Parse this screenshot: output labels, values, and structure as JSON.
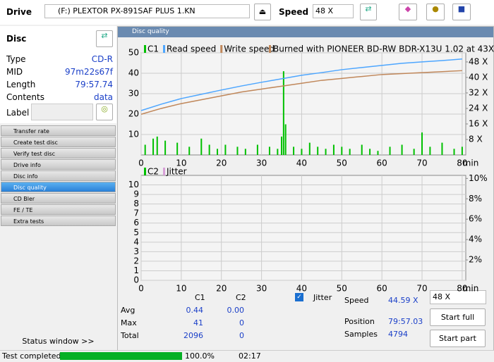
{
  "toolbar": {
    "drive_label": "Drive",
    "drive": "(F:)  PLEXTOR PX-891SAF PLUS 1.KN",
    "speed_label": "Speed",
    "speed": "48 X"
  },
  "disc": {
    "title": "Disc",
    "rows": [
      [
        "Type",
        "CD-R"
      ],
      [
        "MID",
        "97m22s67f"
      ],
      [
        "Length",
        "79:57.74"
      ],
      [
        "Contents",
        "data"
      ]
    ],
    "label": "Label"
  },
  "menu": [
    "Transfer rate",
    "Create test disc",
    "Verify test disc",
    "Drive info",
    "Disc info",
    "Disc quality",
    "CD Bler",
    "FE / TE",
    "Extra tests"
  ],
  "menu_selected": 5,
  "status_window": "Status window >>",
  "panel_title": "Disc quality",
  "charts": [
    {
      "type": "combo",
      "annotation": "Burned with PIONEER BD-RW   BDR-X13U 1.02 at 43X",
      "x_label": "min",
      "xlim": [
        0,
        80.9
      ],
      "xticks": [
        0,
        10,
        20,
        30,
        40,
        50,
        60,
        70,
        80
      ],
      "ylim": [
        0,
        50
      ],
      "yticks": [
        10,
        20,
        30,
        40,
        50
      ],
      "y2lim": [
        0,
        52.7
      ],
      "y2ticks": [
        {
          "value": 8,
          "label": "8 X"
        },
        {
          "value": 16,
          "label": "16 X"
        },
        {
          "value": 24,
          "label": "24 X"
        },
        {
          "value": 32,
          "label": "32 X"
        },
        {
          "value": 40,
          "label": "40 X"
        },
        {
          "value": 48,
          "label": "48 X"
        }
      ],
      "grid": true,
      "series": [
        {
          "name": "C1",
          "color": "#00c000",
          "kind": "bar",
          "x": [
            1,
            3,
            4,
            6,
            9,
            12,
            15,
            17,
            19,
            21,
            24,
            26,
            29,
            32,
            34,
            35,
            35.5,
            36,
            38,
            40,
            42,
            44,
            46,
            48,
            50,
            52,
            55,
            57,
            59,
            62,
            65,
            68,
            70,
            72,
            75,
            78,
            80
          ],
          "values": [
            5,
            8,
            9,
            7,
            6,
            4,
            8,
            5,
            3,
            5,
            4,
            3,
            5,
            4,
            3,
            9,
            41,
            15,
            4,
            3,
            6,
            4,
            3,
            5,
            4,
            3,
            5,
            3,
            2,
            4,
            5,
            3,
            11,
            4,
            6,
            3,
            4
          ]
        },
        {
          "name": "Read speed",
          "color": "#4da6ff",
          "kind": "line",
          "axis": "y2",
          "x": [
            0,
            5,
            10,
            15,
            20,
            25,
            30,
            35,
            40,
            45,
            50,
            55,
            60,
            65,
            70,
            75,
            80
          ],
          "values": [
            22.9,
            26.2,
            29.1,
            31.3,
            33.5,
            35.6,
            37.5,
            39.3,
            41.1,
            42.5,
            44,
            45.1,
            46.2,
            47.3,
            48,
            48.7,
            49.5
          ]
        },
        {
          "name": "Write speed",
          "color": "#c0875a",
          "kind": "line",
          "axis": "y2",
          "x": [
            0,
            5,
            10,
            15,
            20,
            25,
            30,
            35,
            40,
            45,
            50,
            55,
            60,
            65,
            70,
            75,
            80
          ],
          "values": [
            21,
            24,
            26.5,
            28.5,
            30.5,
            32.5,
            34,
            35.5,
            37,
            38.5,
            39.5,
            40.5,
            41.5,
            42,
            42.5,
            43,
            43.5
          ]
        }
      ]
    },
    {
      "type": "line",
      "x_label": "min",
      "xlim": [
        0,
        80.9
      ],
      "xticks": [
        0,
        10,
        20,
        30,
        40,
        50,
        60,
        70,
        80
      ],
      "ylim": [
        0,
        11
      ],
      "yticks": [
        0,
        1,
        2,
        3,
        4,
        5,
        6,
        7,
        8,
        9,
        10
      ],
      "y2lim": [
        0,
        10.3
      ],
      "y2ticks": [
        {
          "value": 2,
          "label": "2%"
        },
        {
          "value": 4,
          "label": "4%"
        },
        {
          "value": 6,
          "label": "6%"
        },
        {
          "value": 8,
          "label": "8%"
        },
        {
          "value": 10,
          "label": "10%"
        }
      ],
      "grid": true,
      "series": [
        {
          "name": "C2",
          "color": "#00c000",
          "kind": "bar",
          "x": [],
          "values": []
        },
        {
          "name": "Jitter",
          "color": "#d8a0d8",
          "kind": "line",
          "axis": "y2",
          "x": [],
          "values": []
        }
      ]
    }
  ],
  "stats": {
    "headers": [
      "C1",
      "C2"
    ],
    "rows": [
      [
        "Avg",
        "0.44",
        "0.00"
      ],
      [
        "Max",
        "41",
        "0"
      ],
      [
        "Total",
        "2096",
        "0"
      ]
    ]
  },
  "jitter_label": "Jitter",
  "info": [
    [
      "Speed",
      "44.59 X"
    ],
    [
      "Position",
      "79:57.03"
    ],
    [
      "Samples",
      "4794"
    ]
  ],
  "speed_select": "48 X",
  "buttons": [
    "Start full",
    "Start part"
  ],
  "status": {
    "text": "Test completed",
    "progress": {
      "value": 100,
      "label": "100.0%"
    },
    "time": "02:17"
  }
}
